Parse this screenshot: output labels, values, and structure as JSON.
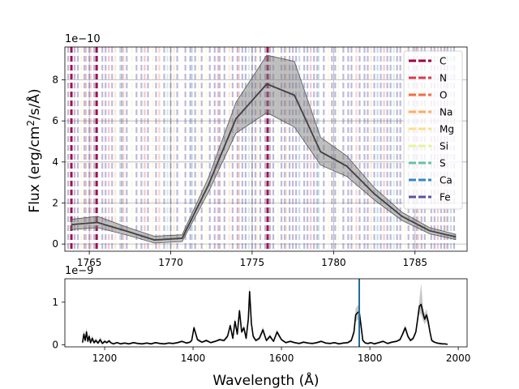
{
  "chart_data": [
    {
      "type": "line",
      "ylabel": "Flux (erg/cm$^2$/s/$\\AA$)",
      "ylabel_parts": {
        "base": "Flux (erg/cm",
        "sup": "2",
        "tail": "/s/Å)"
      },
      "offset_text": "1e−10",
      "xlim": [
        1763.5,
        1788.2
      ],
      "ylim": [
        -0.35,
        9.6
      ],
      "y_scale": "1e-10",
      "grid": true,
      "legend_position": "top-right",
      "xticks": [
        1765,
        1770,
        1775,
        1780,
        1785
      ],
      "xtick_labels": [
        "1765",
        "1770",
        "1775",
        "1780",
        "1785"
      ],
      "yticks": [
        0,
        2,
        4,
        6,
        8
      ],
      "ytick_labels": [
        "0",
        "2",
        "4",
        "6",
        "8"
      ],
      "series": [
        {
          "color": "#404040",
          "x": [
            1763.9,
            1765.5,
            1767.4,
            1769.0,
            1770.7,
            1772.3,
            1774.0,
            1775.9,
            1777.6,
            1779.2,
            1780.8,
            1782.5,
            1784.2,
            1785.9,
            1787.5
          ],
          "y": [
            0.95,
            1.05,
            0.6,
            0.2,
            0.28,
            2.85,
            6.1,
            7.8,
            7.25,
            4.5,
            3.8,
            2.45,
            1.35,
            0.65,
            0.35
          ],
          "band_upper": [
            1.2,
            1.35,
            0.8,
            0.38,
            0.45,
            3.2,
            6.9,
            9.2,
            8.9,
            5.2,
            4.3,
            2.75,
            1.55,
            0.8,
            0.48
          ],
          "band_lower": [
            0.7,
            0.8,
            0.42,
            0.05,
            0.12,
            2.5,
            5.4,
            6.4,
            5.7,
            3.85,
            3.3,
            2.15,
            1.15,
            0.5,
            0.22
          ]
        }
      ],
      "legend": [
        {
          "label": "C",
          "color": "#9e0142"
        },
        {
          "label": "N",
          "color": "#d53e4f"
        },
        {
          "label": "O",
          "color": "#f46d43"
        },
        {
          "label": "Na",
          "color": "#fdae61"
        },
        {
          "label": "Mg",
          "color": "#fee08b"
        },
        {
          "label": "Si",
          "color": "#e6f598"
        },
        {
          "label": "S",
          "color": "#66c2a5"
        },
        {
          "label": "Ca",
          "color": "#3288bd"
        },
        {
          "label": "Fe",
          "color": "#5e4fa2"
        }
      ],
      "line_markers": {
        "C": [
          1763.9,
          1765.45,
          1775.95
        ],
        "N": [
          1764.8,
          1766.2,
          1768.4,
          1772.9,
          1778.6,
          1783.1,
          1786.4
        ],
        "O": [
          1765.1,
          1767.1,
          1769.3,
          1774.2,
          1781.4,
          1785.2
        ],
        "Na": [
          1766.6,
          1770.2,
          1773.6,
          1777.1,
          1782.3,
          1786.9
        ],
        "Mg": [
          1764.5,
          1768.9,
          1771.7,
          1775.3,
          1779.7,
          1784.4
        ],
        "Si": [
          1767.6,
          1772.2,
          1776.6,
          1780.3,
          1785.8
        ],
        "S": [
          1769.8,
          1774.8,
          1779.1,
          1783.7
        ],
        "Ca": [
          1766.9,
          1771.3,
          1777.9,
          1782.7,
          1787.2
        ],
        "Fe": [
          1763.7,
          1764.1,
          1764.3,
          1764.7,
          1765.0,
          1765.3,
          1765.8,
          1766.0,
          1766.4,
          1767.0,
          1767.3,
          1767.9,
          1768.2,
          1768.6,
          1769.1,
          1769.6,
          1770.0,
          1770.4,
          1770.9,
          1771.2,
          1771.5,
          1771.9,
          1772.4,
          1772.7,
          1773.0,
          1773.3,
          1773.8,
          1774.1,
          1774.4,
          1774.6,
          1775.0,
          1775.2,
          1775.5,
          1775.8,
          1776.1,
          1776.3,
          1776.8,
          1777.0,
          1777.3,
          1777.5,
          1777.7,
          1778.2,
          1778.4,
          1778.8,
          1779.0,
          1779.4,
          1779.9,
          1780.1,
          1780.6,
          1780.9,
          1781.1,
          1781.6,
          1781.9,
          1782.1,
          1782.5,
          1782.9,
          1783.3,
          1783.5,
          1783.9,
          1784.1,
          1784.6,
          1784.9,
          1785.1,
          1785.4,
          1785.6,
          1786.0,
          1786.2,
          1786.6,
          1786.8,
          1787.0,
          1787.4
        ]
      }
    },
    {
      "type": "line",
      "xlabel": "Wavelength ($\\AA$)",
      "xlabel_display": "Wavelength (Å)",
      "offset_text": "1e−9",
      "xlim": [
        1110,
        2020
      ],
      "ylim": [
        -0.05,
        1.55
      ],
      "y_scale": "1e-9",
      "grid": false,
      "xticks": [
        1200,
        1400,
        1600,
        1800,
        2000
      ],
      "xtick_labels": [
        "1200",
        "1400",
        "1600",
        "1800",
        "2000"
      ],
      "yticks": [
        0,
        1
      ],
      "ytick_labels": [
        "0",
        "1"
      ],
      "highlight_x": 1776,
      "highlight_color": "#1f6e9c",
      "series": [
        {
          "color": "#000000",
          "x": [
            1150,
            1153,
            1156,
            1159,
            1162,
            1165,
            1168,
            1172,
            1176,
            1180,
            1185,
            1190,
            1195,
            1200,
            1205,
            1210,
            1215,
            1220,
            1228,
            1236,
            1245,
            1255,
            1265,
            1275,
            1285,
            1295,
            1305,
            1315,
            1325,
            1335,
            1345,
            1355,
            1365,
            1375,
            1385,
            1393,
            1397,
            1402,
            1410,
            1420,
            1430,
            1440,
            1450,
            1460,
            1470,
            1478,
            1484,
            1490,
            1495,
            1500,
            1505,
            1510,
            1515,
            1520,
            1525,
            1528,
            1532,
            1536,
            1542,
            1550,
            1558,
            1566,
            1574,
            1582,
            1590,
            1600,
            1610,
            1620,
            1630,
            1640,
            1650,
            1660,
            1670,
            1680,
            1690,
            1700,
            1710,
            1720,
            1730,
            1740,
            1750,
            1758,
            1764,
            1768,
            1772,
            1776,
            1780,
            1784,
            1790,
            1796,
            1802,
            1810,
            1820,
            1830,
            1840,
            1850,
            1860,
            1868,
            1874,
            1880,
            1886,
            1892,
            1898,
            1904,
            1908,
            1912,
            1916,
            1920,
            1924,
            1928,
            1932,
            1936,
            1940,
            1946,
            1952,
            1958,
            1964,
            1970,
            1976
          ],
          "y": [
            0.05,
            0.25,
            0.1,
            0.3,
            0.08,
            0.2,
            0.05,
            0.15,
            0.05,
            0.1,
            0.04,
            0.12,
            0.03,
            0.08,
            0.05,
            0.09,
            0.04,
            0.02,
            0.05,
            0.02,
            0.04,
            0.02,
            0.05,
            0.03,
            0.02,
            0.04,
            0.02,
            0.05,
            0.03,
            0.02,
            0.04,
            0.03,
            0.05,
            0.08,
            0.04,
            0.06,
            0.1,
            0.4,
            0.12,
            0.06,
            0.1,
            0.05,
            0.08,
            0.12,
            0.1,
            0.2,
            0.45,
            0.15,
            0.55,
            0.25,
            0.8,
            0.3,
            0.4,
            0.15,
            0.6,
            1.25,
            0.5,
            0.2,
            0.1,
            0.15,
            0.35,
            0.1,
            0.2,
            0.08,
            0.3,
            0.12,
            0.05,
            0.08,
            0.05,
            0.03,
            0.06,
            0.04,
            0.03,
            0.05,
            0.08,
            0.04,
            0.03,
            0.05,
            0.02,
            0.04,
            0.05,
            0.1,
            0.3,
            0.7,
            0.75,
            0.78,
            0.45,
            0.1,
            0.04,
            0.03,
            0.05,
            0.02,
            0.05,
            0.08,
            0.03,
            0.06,
            0.08,
            0.12,
            0.25,
            0.4,
            0.2,
            0.1,
            0.15,
            0.3,
            0.6,
            0.9,
            0.95,
            0.75,
            0.6,
            0.7,
            0.55,
            0.3,
            0.1,
            0.06,
            0.04,
            0.03,
            0.02,
            0.02,
            0.01
          ],
          "band_upper": [
            0.12,
            0.35,
            0.2,
            0.4,
            0.15,
            0.28,
            0.1,
            0.22,
            0.1,
            0.16,
            0.08,
            0.18,
            0.06,
            0.12,
            0.08,
            0.13,
            0.06,
            0.04,
            0.07,
            0.04,
            0.06,
            0.04,
            0.07,
            0.05,
            0.04,
            0.06,
            0.04,
            0.07,
            0.05,
            0.04,
            0.06,
            0.05,
            0.07,
            0.1,
            0.06,
            0.08,
            0.13,
            0.46,
            0.16,
            0.08,
            0.13,
            0.07,
            0.1,
            0.15,
            0.13,
            0.25,
            0.52,
            0.19,
            0.62,
            0.3,
            0.88,
            0.35,
            0.46,
            0.19,
            0.68,
            1.4,
            0.58,
            0.25,
            0.13,
            0.19,
            0.42,
            0.13,
            0.25,
            0.1,
            0.36,
            0.15,
            0.07,
            0.1,
            0.07,
            0.05,
            0.08,
            0.06,
            0.05,
            0.07,
            0.1,
            0.06,
            0.05,
            0.07,
            0.04,
            0.06,
            0.07,
            0.14,
            0.38,
            0.85,
            0.92,
            0.95,
            0.55,
            0.14,
            0.06,
            0.05,
            0.07,
            0.04,
            0.07,
            0.1,
            0.05,
            0.08,
            0.1,
            0.15,
            0.3,
            0.47,
            0.25,
            0.13,
            0.19,
            0.36,
            0.7,
            1.05,
            1.45,
            0.92,
            0.72,
            0.84,
            0.66,
            0.37,
            0.14,
            0.08,
            0.06,
            0.05,
            0.04,
            0.03,
            0.02
          ],
          "band_lower": [
            0.01,
            0.15,
            0.04,
            0.2,
            0.03,
            0.12,
            0.01,
            0.08,
            0.01,
            0.05,
            0.01,
            0.06,
            0.01,
            0.04,
            0.02,
            0.05,
            0.02,
            0.0,
            0.03,
            0.0,
            0.02,
            0.0,
            0.03,
            0.01,
            0.0,
            0.02,
            0.0,
            0.03,
            0.01,
            0.0,
            0.02,
            0.01,
            0.03,
            0.06,
            0.02,
            0.04,
            0.07,
            0.34,
            0.08,
            0.04,
            0.07,
            0.03,
            0.06,
            0.09,
            0.07,
            0.15,
            0.38,
            0.11,
            0.48,
            0.2,
            0.72,
            0.25,
            0.34,
            0.11,
            0.52,
            1.1,
            0.42,
            0.15,
            0.07,
            0.11,
            0.28,
            0.07,
            0.15,
            0.06,
            0.24,
            0.09,
            0.03,
            0.06,
            0.03,
            0.01,
            0.04,
            0.02,
            0.01,
            0.03,
            0.06,
            0.02,
            0.01,
            0.03,
            0.0,
            0.02,
            0.03,
            0.06,
            0.22,
            0.55,
            0.58,
            0.61,
            0.35,
            0.06,
            0.02,
            0.01,
            0.03,
            0.0,
            0.03,
            0.06,
            0.01,
            0.04,
            0.06,
            0.09,
            0.2,
            0.33,
            0.15,
            0.07,
            0.11,
            0.24,
            0.5,
            0.75,
            0.7,
            0.58,
            0.48,
            0.56,
            0.44,
            0.23,
            0.06,
            0.04,
            0.02,
            0.01,
            0.0,
            0.01,
            0.0
          ]
        }
      ]
    }
  ]
}
